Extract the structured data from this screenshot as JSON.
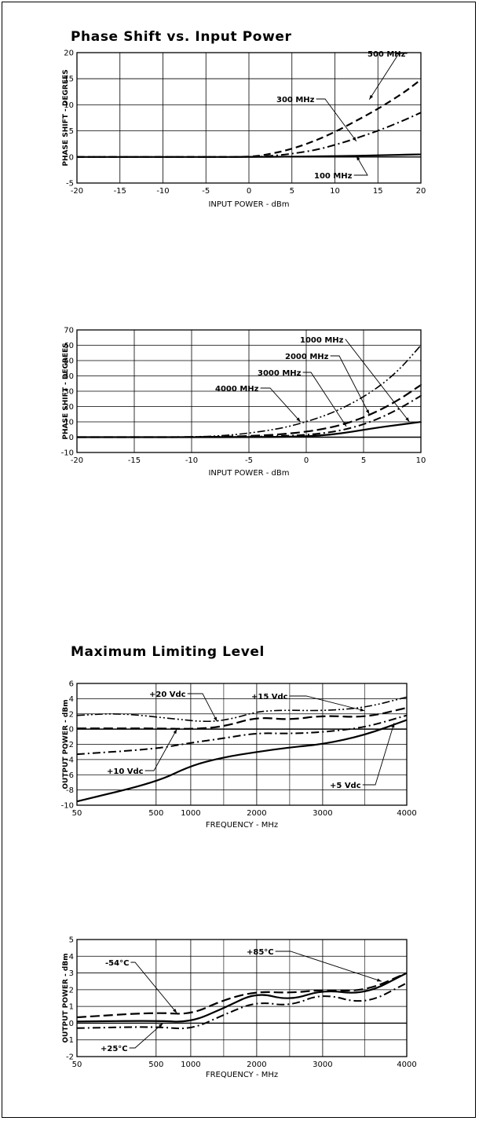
{
  "sections": {
    "phase_title": "Phase Shift vs. Input Power",
    "limit_title": "Maximum Limiting Level"
  },
  "chart_data": [
    {
      "type": "line",
      "xlabel": "INPUT POWER - dBm",
      "ylabel": "PHASE SHIFT - DEGREES",
      "xlim": [
        -20,
        20
      ],
      "ylim": [
        -5,
        20
      ],
      "xticks": [
        -20,
        -15,
        -10,
        -5,
        0,
        5,
        10,
        15,
        20
      ],
      "xtick_labels": [
        "-20",
        "-15",
        "-10",
        "-5",
        "0",
        "5",
        "10",
        "15",
        "20"
      ],
      "yticks": [
        -5,
        0,
        5,
        10,
        15,
        20
      ],
      "ytick_labels": [
        "-5",
        "0",
        "5",
        "10",
        "15",
        "20"
      ],
      "grid": true,
      "series": [
        {
          "name": "500 MHz",
          "style": "dash",
          "x": [
            -20,
            -5,
            0,
            2,
            5,
            8,
            10,
            12,
            15,
            18,
            20
          ],
          "y": [
            0,
            0,
            0,
            0.4,
            1.5,
            3.3,
            4.8,
            6.5,
            9.2,
            12.3,
            14.8
          ]
        },
        {
          "name": "300 MHz",
          "style": "dashdot",
          "x": [
            -20,
            -5,
            0,
            2,
            5,
            8,
            10,
            12,
            15,
            18,
            20
          ],
          "y": [
            0,
            0,
            0,
            0.1,
            0.6,
            1.4,
            2.3,
            3.3,
            5,
            7,
            8.5
          ]
        },
        {
          "name": "100 MHz",
          "style": "solid",
          "x": [
            -20,
            -5,
            0,
            5,
            10,
            15,
            20
          ],
          "y": [
            0,
            0,
            0,
            0.05,
            0.15,
            0.3,
            0.5
          ]
        }
      ],
      "annotations": [
        {
          "text": "500 MHz",
          "at": [
            14,
            11
          ]
        },
        {
          "text": "300 MHz",
          "at": [
            12.5,
            3
          ]
        },
        {
          "text": "100 MHz",
          "at": [
            12.5,
            0.2
          ]
        }
      ]
    },
    {
      "type": "line",
      "xlabel": "INPUT POWER - dBm",
      "ylabel": "PHASE SHIFT - DEGREES",
      "xlim": [
        -20,
        10
      ],
      "ylim": [
        -10,
        70
      ],
      "xticks": [
        -20,
        -15,
        -10,
        -5,
        0,
        5,
        10
      ],
      "xtick_labels": [
        "-20",
        "-15",
        "-10",
        "-5",
        "0",
        "5",
        "10"
      ],
      "yticks": [
        -10,
        0,
        10,
        20,
        30,
        40,
        50,
        60,
        70
      ],
      "ytick_labels": [
        "-10",
        "0",
        "10",
        "20",
        "30",
        "40",
        "50",
        "60",
        "70"
      ],
      "grid": true,
      "series": [
        {
          "name": "1000 MHz",
          "style": "dashdotdot",
          "x": [
            -20,
            -12,
            -8,
            -5,
            -2,
            0,
            2,
            4,
            6,
            8,
            10
          ],
          "y": [
            0,
            0,
            0.5,
            2.5,
            6,
            10,
            15,
            22,
            31,
            43,
            60
          ]
        },
        {
          "name": "2000 MHz",
          "style": "longdash",
          "x": [
            -20,
            -8,
            -4,
            -2,
            0,
            2,
            4,
            6,
            8,
            10
          ],
          "y": [
            0,
            0,
            1,
            2,
            3.5,
            6,
            10,
            16,
            24,
            34
          ]
        },
        {
          "name": "3000 MHz",
          "style": "dashdot",
          "x": [
            -20,
            -6,
            -2,
            0,
            2,
            4,
            6,
            8,
            10
          ],
          "y": [
            0,
            0,
            0.8,
            1.5,
            3,
            6,
            11,
            18,
            27
          ]
        },
        {
          "name": "4000 MHz",
          "style": "solid",
          "x": [
            -20,
            -4,
            0,
            2,
            4,
            6,
            8,
            10
          ],
          "y": [
            0,
            0,
            0.5,
            1.5,
            3.5,
            6,
            8,
            10
          ]
        }
      ],
      "annotations": [
        {
          "text": "1000 MHz",
          "at": [
            9,
            10
          ]
        },
        {
          "text": "2000 MHz",
          "at": [
            5.5,
            15
          ]
        },
        {
          "text": "3000 MHz",
          "at": [
            3.5,
            7
          ]
        },
        {
          "text": "4000 MHz",
          "at": [
            -0.5,
            10
          ]
        }
      ]
    },
    {
      "type": "line",
      "xlabel": "FREQUENCY - MHz",
      "ylabel": "OUTPUT POWER - dBm",
      "xlim": [
        50,
        4000
      ],
      "ylim": [
        -10,
        6
      ],
      "xticks": [
        50,
        500,
        1000,
        2000,
        3000,
        4000
      ],
      "xtick_labels": [
        "50",
        "500",
        "1000",
        "2000",
        "3000",
        "4000"
      ],
      "yticks": [
        -10,
        -8,
        -6,
        -4,
        -2,
        0,
        2,
        4,
        6
      ],
      "ytick_labels": [
        "-10",
        "-8",
        "-6",
        "-4",
        "-2",
        "0",
        "2",
        "4",
        "6"
      ],
      "grid": true,
      "series": [
        {
          "name": "+20 Vdc",
          "style": "dashdotdot",
          "x": [
            50,
            300,
            800,
            1300,
            1700,
            2000,
            2400,
            3000,
            3500,
            4000
          ],
          "y": [
            1.8,
            2.1,
            1.3,
            0.9,
            1.5,
            2.3,
            2.5,
            2.4,
            2.8,
            4.2
          ]
        },
        {
          "name": "+15 Vdc",
          "style": "longdash",
          "x": [
            50,
            500,
            1000,
            1500,
            2000,
            2500,
            3000,
            3500,
            4000
          ],
          "y": [
            0.1,
            0.1,
            0,
            0.3,
            1.6,
            1.2,
            1.8,
            1.5,
            2.8
          ]
        },
        {
          "name": "+10 Vdc",
          "style": "dashdot",
          "x": [
            50,
            500,
            1000,
            1500,
            2000,
            2500,
            3000,
            3500,
            4000
          ],
          "y": [
            -3.3,
            -2.6,
            -1.8,
            -1.2,
            -0.5,
            -0.6,
            -0.4,
            0.2,
            1.8
          ]
        },
        {
          "name": "+5 Vdc",
          "style": "solid",
          "x": [
            50,
            500,
            1000,
            1500,
            2000,
            2500,
            3000,
            3500,
            4000
          ],
          "y": [
            -9.5,
            -7,
            -4.8,
            -3.7,
            -3,
            -2.4,
            -2,
            -0.8,
            1.2
          ]
        }
      ],
      "annotations": [
        {
          "text": "+20 Vdc",
          "at": [
            1400,
            1
          ]
        },
        {
          "text": "+15 Vdc",
          "at": [
            3500,
            2.4
          ]
        },
        {
          "text": "+10 Vdc",
          "at": [
            800,
            0
          ]
        },
        {
          "text": "+5 Vdc",
          "at": [
            3850,
            0.8
          ]
        }
      ]
    },
    {
      "type": "line",
      "xlabel": "FREQUENCY - MHz",
      "ylabel": "OUTPUT POWER - dBm",
      "xlim": [
        50,
        4000
      ],
      "ylim": [
        -2,
        5
      ],
      "xticks": [
        50,
        500,
        1000,
        2000,
        3000,
        4000
      ],
      "xtick_labels": [
        "50",
        "500",
        "1000",
        "2000",
        "3000",
        "4000"
      ],
      "yticks": [
        -2,
        -1,
        0,
        1,
        2,
        3,
        4,
        5
      ],
      "ytick_labels": [
        "-2",
        "-1",
        "0",
        "1",
        "2",
        "3",
        "4",
        "5"
      ],
      "grid": true,
      "series": [
        {
          "name": "-54°C",
          "style": "longdash",
          "x": [
            50,
            500,
            1000,
            1500,
            2000,
            2500,
            3000,
            3500,
            4000
          ],
          "y": [
            0.35,
            0.65,
            0.5,
            1.4,
            1.9,
            1.8,
            2.0,
            1.9,
            3.0
          ]
        },
        {
          "name": "+25°C",
          "style": "solid",
          "x": [
            50,
            500,
            1000,
            1500,
            2000,
            2500,
            3000,
            3500,
            4000
          ],
          "y": [
            0.1,
            0.15,
            0.05,
            0.9,
            1.85,
            1.35,
            2.0,
            1.7,
            3.0
          ]
        },
        {
          "name": "+85°C",
          "style": "dashdot",
          "x": [
            50,
            500,
            1000,
            1500,
            2000,
            2500,
            3000,
            3500,
            4000
          ],
          "y": [
            -0.3,
            -0.2,
            -0.4,
            0.5,
            1.3,
            1.0,
            1.8,
            1.1,
            2.4
          ]
        }
      ],
      "annotations": [
        {
          "text": "-54°C",
          "at": [
            800,
            0.6
          ]
        },
        {
          "text": "+25°C",
          "at": [
            600,
            0
          ]
        },
        {
          "text": "+85°C",
          "at": [
            3700,
            2.5
          ]
        }
      ]
    }
  ]
}
